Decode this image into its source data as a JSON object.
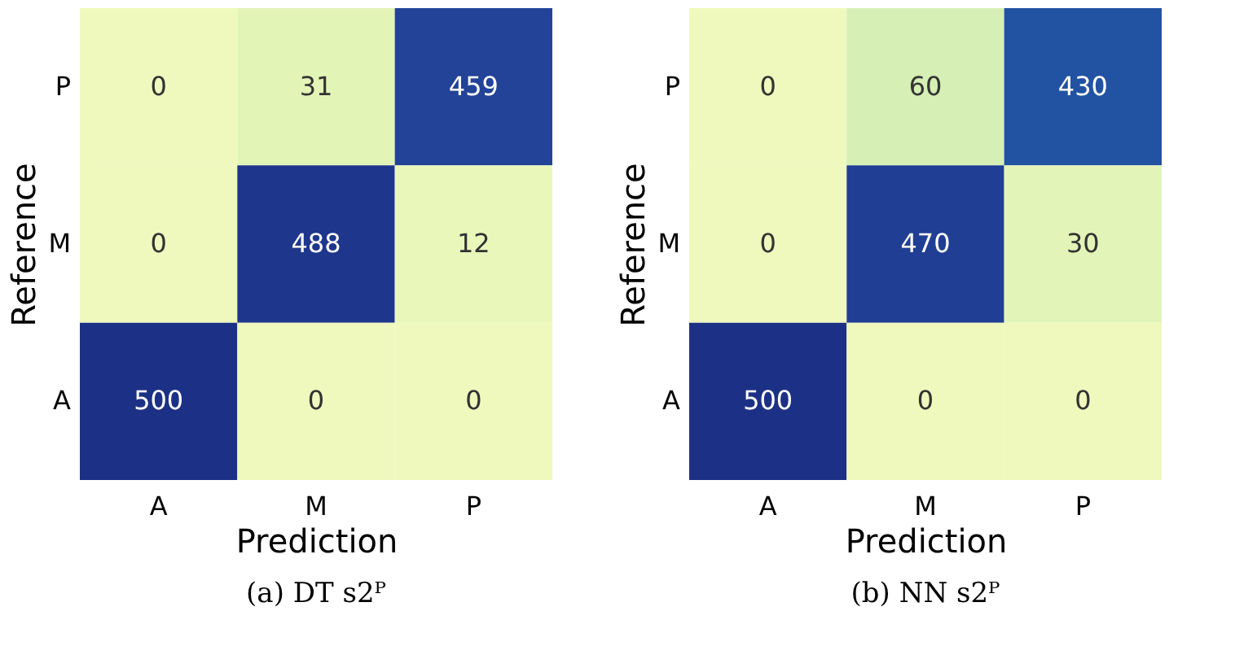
{
  "chart_data": [
    {
      "type": "heatmap",
      "title": "(a) DT s2ᴾ",
      "xlabel": "Prediction",
      "ylabel": "Reference",
      "categories": [
        "A",
        "M",
        "P"
      ],
      "y_categories": [
        "P",
        "M",
        "A"
      ],
      "data_labels": true,
      "cells": [
        [
          0,
          31,
          459
        ],
        [
          0,
          488,
          12
        ],
        [
          500,
          0,
          0
        ]
      ]
    },
    {
      "type": "heatmap",
      "title": "(b) NN s2ᴾ",
      "xlabel": "Prediction",
      "ylabel": "Reference",
      "categories": [
        "A",
        "M",
        "P"
      ],
      "y_categories": [
        "P",
        "M",
        "A"
      ],
      "data_labels": true,
      "cells": [
        [
          0,
          60,
          430
        ],
        [
          0,
          470,
          30
        ],
        [
          500,
          0,
          0
        ]
      ]
    }
  ]
}
